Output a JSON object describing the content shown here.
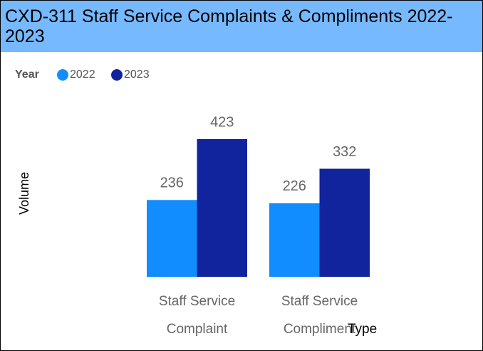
{
  "chart_data": {
    "type": "bar",
    "title": "CXD-311 Staff Service Complaints & Compliments 2022-2023",
    "legend_title": "Year",
    "x_label": "Type",
    "y_label": "Volume",
    "categories": [
      "Staff Service Complaint",
      "Staff Service Compliment"
    ],
    "series": [
      {
        "name": "2022",
        "color": "#118dff",
        "values": [
          236,
          226
        ]
      },
      {
        "name": "2023",
        "color": "#12239e",
        "values": [
          423,
          332
        ]
      }
    ]
  }
}
